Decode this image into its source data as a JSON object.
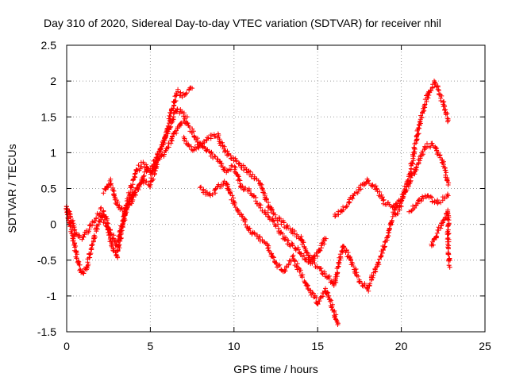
{
  "chart_data": {
    "type": "scatter",
    "title": "Day 310 of 2020, Sidereal Day-to-day VTEC variation (SDTVAR) for receiver nhil",
    "xlabel": "GPS time / hours",
    "ylabel": "SDTVAR / TECUs",
    "xlim": [
      0,
      25
    ],
    "ylim": [
      -1.5,
      2.5
    ],
    "xticks": [
      "0",
      "5",
      "10",
      "15",
      "20",
      "25"
    ],
    "yticks": [
      "-1.5",
      "-1",
      "-0.5",
      "0",
      "0.5",
      "1",
      "1.5",
      "2",
      "2.5"
    ],
    "grid": true,
    "marker": "+",
    "color": "#ff0000",
    "series": [
      {
        "x": [
          0.0,
          0.3,
          0.6,
          0.9,
          1.2,
          1.5,
          1.8,
          2.1,
          2.4,
          2.7,
          3.0,
          3.3,
          3.6,
          3.9,
          4.2,
          4.5,
          4.8,
          5.1,
          5.4,
          5.7,
          6.0,
          6.3,
          6.6,
          6.9,
          7.2,
          7.5
        ],
        "y": [
          0.25,
          0.05,
          -0.15,
          -0.2,
          -0.1,
          0.0,
          0.1,
          0.2,
          0.05,
          -0.3,
          -0.45,
          -0.1,
          0.3,
          0.55,
          0.75,
          0.85,
          0.8,
          0.7,
          0.9,
          1.1,
          1.3,
          1.6,
          1.85,
          1.8,
          1.85,
          1.9
        ]
      },
      {
        "x": [
          0.0,
          0.3,
          0.6,
          0.9,
          1.2,
          1.5,
          1.8,
          2.1,
          2.4,
          2.7,
          3.0,
          3.3,
          3.6,
          3.9,
          4.2,
          4.5,
          4.8,
          5.1,
          5.4,
          5.7,
          6.0,
          6.3,
          6.6,
          6.9,
          7.2
        ],
        "y": [
          0.2,
          -0.1,
          -0.45,
          -0.7,
          -0.6,
          -0.3,
          -0.05,
          0.1,
          0.0,
          -0.15,
          -0.3,
          0.0,
          0.25,
          0.4,
          0.5,
          0.6,
          0.75,
          0.8,
          0.95,
          1.1,
          1.25,
          1.45,
          1.6,
          1.55,
          1.5
        ]
      },
      {
        "x": [
          2.2,
          2.6,
          3.0,
          3.5,
          4.0,
          4.5,
          5.0,
          5.5,
          6.0,
          6.5,
          7.0,
          7.5,
          8.0,
          8.5,
          9.0,
          9.5,
          10.0,
          10.5,
          11.0,
          11.5,
          12.0,
          12.5,
          13.0,
          13.5,
          14.0,
          14.5,
          15.0,
          15.5
        ],
        "y": [
          0.45,
          0.6,
          0.3,
          0.15,
          0.4,
          0.6,
          0.55,
          0.9,
          1.05,
          1.3,
          1.45,
          1.3,
          1.1,
          1.0,
          0.9,
          0.75,
          0.8,
          0.5,
          0.45,
          0.25,
          0.15,
          0.0,
          -0.2,
          -0.3,
          -0.4,
          -0.55,
          -0.4,
          -0.2
        ]
      },
      {
        "x": [
          7.0,
          7.5,
          8.0,
          8.5,
          9.0,
          9.5,
          10.0,
          10.5,
          11.0,
          11.5,
          12.0,
          12.5,
          13.0,
          13.5,
          14.0,
          14.5,
          15.0,
          15.5,
          16.0,
          16.5,
          17.0,
          17.5,
          18.0,
          18.5,
          19.0,
          19.5,
          20.0
        ],
        "y": [
          1.2,
          1.05,
          1.1,
          1.2,
          1.25,
          1.0,
          0.9,
          0.8,
          0.7,
          0.6,
          0.3,
          0.1,
          0.0,
          -0.1,
          -0.2,
          -0.45,
          -0.6,
          -0.7,
          -0.85,
          -0.3,
          -0.5,
          -0.8,
          -0.9,
          -0.6,
          -0.3,
          0.1,
          0.25
        ]
      },
      {
        "x": [
          8.0,
          8.5,
          9.0,
          9.5,
          10.0,
          10.5,
          11.0,
          11.5,
          12.0,
          12.5,
          13.0,
          13.5,
          14.0,
          14.5,
          15.0,
          15.5,
          16.0,
          16.2
        ],
        "y": [
          0.5,
          0.4,
          0.5,
          0.6,
          0.3,
          0.1,
          -0.1,
          -0.2,
          -0.3,
          -0.55,
          -0.65,
          -0.45,
          -0.7,
          -0.9,
          -1.1,
          -0.9,
          -1.25,
          -1.4
        ]
      },
      {
        "x": [
          16.0,
          16.5,
          17.0,
          17.5,
          18.0,
          18.5,
          19.0,
          19.5,
          20.0,
          20.5,
          21.0,
          21.5,
          22.0,
          22.5,
          22.8
        ],
        "y": [
          0.1,
          0.2,
          0.35,
          0.5,
          0.6,
          0.5,
          0.3,
          0.25,
          0.3,
          0.7,
          1.3,
          1.75,
          2.0,
          1.7,
          1.45
        ]
      },
      {
        "x": [
          19.5,
          20.0,
          20.5,
          21.0,
          21.5,
          22.0,
          22.5,
          22.8
        ],
        "y": [
          0.2,
          0.35,
          0.6,
          0.85,
          1.1,
          1.1,
          0.85,
          0.55
        ]
      },
      {
        "x": [
          20.5,
          21.0,
          21.5,
          22.0,
          22.5,
          22.8
        ],
        "y": [
          0.2,
          0.3,
          0.4,
          0.3,
          0.35,
          0.4
        ]
      },
      {
        "x": [
          21.8,
          22.2,
          22.6,
          22.8,
          22.8,
          22.9
        ],
        "y": [
          -0.3,
          -0.1,
          0.1,
          0.2,
          -0.4,
          -0.6
        ]
      }
    ]
  }
}
